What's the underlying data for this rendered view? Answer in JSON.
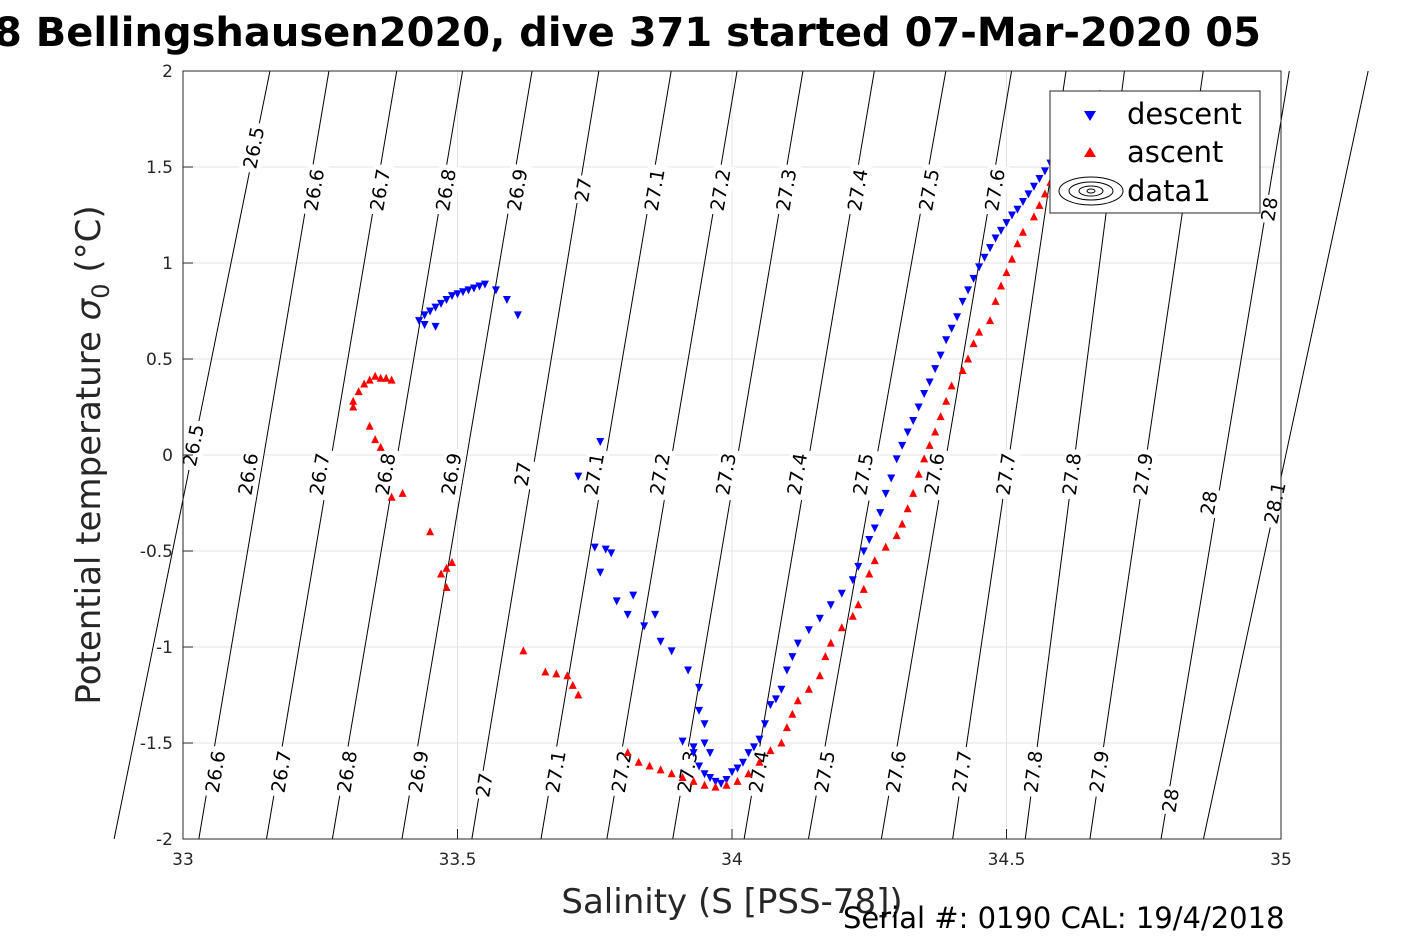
{
  "chart_data": {
    "type": "scatter",
    "title": "8 Bellingshausen2020, dive 371 started 07-Mar-2020 05",
    "xlabel": "Salinity (S [PSS-78])",
    "ylabel_prefix": "Potential temperature ",
    "ylabel_sigma": "σ",
    "ylabel_sub": "0",
    "ylabel_suffix": " (°C)",
    "footer": "Serial #: 0190  CAL: 19/4/2018",
    "xlim": [
      33,
      35
    ],
    "ylim": [
      -2,
      2
    ],
    "x_ticks": [
      "33",
      "33.5",
      "34",
      "34.5",
      "35"
    ],
    "y_ticks": [
      "-2",
      "-1.5",
      "-1",
      "-0.5",
      "0",
      "0.5",
      "1",
      "1.5",
      "2"
    ],
    "grid": true,
    "legend_position": "top-right",
    "legend": [
      {
        "label": "descent",
        "marker": "triangle-down",
        "color": "#0000ff"
      },
      {
        "label": "ascent",
        "marker": "triangle-up",
        "color": "#ff0000"
      },
      {
        "label": "data1",
        "marker": "contour",
        "color": "#000000"
      }
    ],
    "contour_levels": [
      {
        "label": "26.5",
        "labels_at": [
          [
            33.13,
            1.6
          ],
          [
            33.02,
            0.05
          ]
        ]
      },
      {
        "label": "26.6",
        "labels_at": [
          [
            33.24,
            1.38
          ],
          [
            33.12,
            -0.1
          ],
          [
            33.06,
            -1.65
          ]
        ]
      },
      {
        "label": "26.7",
        "labels_at": [
          [
            33.36,
            1.38
          ],
          [
            33.25,
            -0.1
          ],
          [
            33.18,
            -1.65
          ]
        ]
      },
      {
        "label": "26.8",
        "labels_at": [
          [
            33.48,
            1.38
          ],
          [
            33.37,
            -0.1
          ],
          [
            33.3,
            -1.65
          ]
        ]
      },
      {
        "label": "26.9",
        "labels_at": [
          [
            33.61,
            1.38
          ],
          [
            33.49,
            -0.1
          ],
          [
            33.43,
            -1.65
          ]
        ]
      },
      {
        "label": "27",
        "labels_at": [
          [
            33.73,
            1.38
          ],
          [
            33.62,
            -0.1
          ],
          [
            33.55,
            -1.72
          ]
        ]
      },
      {
        "label": "27.1",
        "labels_at": [
          [
            33.86,
            1.38
          ],
          [
            33.75,
            -0.1
          ],
          [
            33.68,
            -1.65
          ]
        ]
      },
      {
        "label": "27.2",
        "labels_at": [
          [
            33.98,
            1.38
          ],
          [
            33.87,
            -0.1
          ],
          [
            33.8,
            -1.65
          ]
        ]
      },
      {
        "label": "27.3",
        "labels_at": [
          [
            34.1,
            1.38
          ],
          [
            33.99,
            -0.1
          ],
          [
            33.92,
            -1.65
          ]
        ]
      },
      {
        "label": "27.4",
        "labels_at": [
          [
            34.23,
            1.38
          ],
          [
            34.12,
            -0.1
          ],
          [
            34.05,
            -1.65
          ]
        ]
      },
      {
        "label": "27.5",
        "labels_at": [
          [
            34.36,
            1.38
          ],
          [
            34.24,
            -0.1
          ],
          [
            34.17,
            -1.65
          ]
        ]
      },
      {
        "label": "27.6",
        "labels_at": [
          [
            34.48,
            1.38
          ],
          [
            34.37,
            -0.1
          ],
          [
            34.3,
            -1.65
          ]
        ]
      },
      {
        "label": "27.7",
        "labels_at": [
          [
            34.5,
            -0.1
          ],
          [
            34.42,
            -1.65
          ]
        ]
      },
      {
        "label": "27.8",
        "labels_at": [
          [
            34.62,
            -0.1
          ],
          [
            34.55,
            -1.65
          ]
        ]
      },
      {
        "label": "27.9",
        "labels_at": [
          [
            34.75,
            -0.1
          ],
          [
            34.67,
            -1.65
          ]
        ]
      },
      {
        "label": "28",
        "labels_at": [
          [
            34.98,
            1.28
          ],
          [
            34.87,
            -0.25
          ],
          [
            34.8,
            -1.8
          ]
        ]
      },
      {
        "label": "28.1",
        "labels_at": [
          [
            34.99,
            -0.25
          ]
        ]
      }
    ],
    "series": [
      {
        "name": "descent",
        "marker": "triangle-down",
        "color": "#0000ff",
        "points": [
          [
            33.43,
            0.7
          ],
          [
            33.44,
            0.73
          ],
          [
            33.45,
            0.75
          ],
          [
            33.46,
            0.77
          ],
          [
            33.47,
            0.79
          ],
          [
            33.48,
            0.81
          ],
          [
            33.49,
            0.83
          ],
          [
            33.5,
            0.84
          ],
          [
            33.51,
            0.85
          ],
          [
            33.52,
            0.86
          ],
          [
            33.53,
            0.87
          ],
          [
            33.54,
            0.88
          ],
          [
            33.55,
            0.89
          ],
          [
            33.57,
            0.86
          ],
          [
            33.59,
            0.81
          ],
          [
            33.61,
            0.73
          ],
          [
            33.44,
            0.68
          ],
          [
            33.46,
            0.67
          ],
          [
            33.76,
            0.07
          ],
          [
            33.72,
            -0.11
          ],
          [
            33.75,
            -0.48
          ],
          [
            33.77,
            -0.49
          ],
          [
            33.78,
            -0.51
          ],
          [
            33.76,
            -0.61
          ],
          [
            33.79,
            -0.76
          ],
          [
            33.82,
            -0.73
          ],
          [
            33.81,
            -0.83
          ],
          [
            33.84,
            -0.89
          ],
          [
            33.86,
            -0.83
          ],
          [
            33.87,
            -0.97
          ],
          [
            33.89,
            -1.02
          ],
          [
            33.92,
            -1.12
          ],
          [
            33.94,
            -1.21
          ],
          [
            33.94,
            -1.33
          ],
          [
            33.95,
            -1.4
          ],
          [
            33.91,
            -1.49
          ],
          [
            33.93,
            -1.52
          ],
          [
            33.95,
            -1.5
          ],
          [
            33.93,
            -1.55
          ],
          [
            33.96,
            -1.55
          ],
          [
            33.94,
            -1.62
          ],
          [
            33.95,
            -1.66
          ],
          [
            33.96,
            -1.68
          ],
          [
            33.97,
            -1.7
          ],
          [
            33.98,
            -1.71
          ],
          [
            33.99,
            -1.69
          ],
          [
            34.0,
            -1.65
          ],
          [
            34.01,
            -1.63
          ],
          [
            34.02,
            -1.6
          ],
          [
            34.03,
            -1.55
          ],
          [
            34.04,
            -1.52
          ],
          [
            34.05,
            -1.48
          ],
          [
            34.06,
            -1.4
          ],
          [
            34.07,
            -1.3
          ],
          [
            34.08,
            -1.27
          ],
          [
            34.09,
            -1.22
          ],
          [
            34.1,
            -1.12
          ],
          [
            34.11,
            -1.05
          ],
          [
            34.12,
            -0.98
          ],
          [
            34.14,
            -0.91
          ],
          [
            34.16,
            -0.85
          ],
          [
            34.18,
            -0.78
          ],
          [
            34.2,
            -0.72
          ],
          [
            34.22,
            -0.65
          ],
          [
            34.23,
            -0.58
          ],
          [
            34.24,
            -0.5
          ],
          [
            34.25,
            -0.44
          ],
          [
            34.26,
            -0.38
          ],
          [
            34.27,
            -0.3
          ],
          [
            34.28,
            -0.2
          ],
          [
            34.29,
            -0.12
          ],
          [
            34.3,
            -0.02
          ],
          [
            34.31,
            0.05
          ],
          [
            34.32,
            0.12
          ],
          [
            34.33,
            0.18
          ],
          [
            34.34,
            0.25
          ],
          [
            34.35,
            0.32
          ],
          [
            34.36,
            0.38
          ],
          [
            34.37,
            0.45
          ],
          [
            34.38,
            0.52
          ],
          [
            34.39,
            0.6
          ],
          [
            34.4,
            0.66
          ],
          [
            34.41,
            0.72
          ],
          [
            34.42,
            0.8
          ],
          [
            34.43,
            0.86
          ],
          [
            34.44,
            0.92
          ],
          [
            34.45,
            0.98
          ],
          [
            34.46,
            1.03
          ],
          [
            34.47,
            1.08
          ],
          [
            34.48,
            1.13
          ],
          [
            34.49,
            1.17
          ],
          [
            34.5,
            1.21
          ],
          [
            34.51,
            1.25
          ],
          [
            34.52,
            1.28
          ],
          [
            34.53,
            1.32
          ],
          [
            34.54,
            1.36
          ],
          [
            34.55,
            1.4
          ],
          [
            34.56,
            1.44
          ],
          [
            34.57,
            1.48
          ],
          [
            34.58,
            1.52
          ],
          [
            34.59,
            1.55
          ],
          [
            34.6,
            1.57
          ]
        ]
      },
      {
        "name": "ascent",
        "marker": "triangle-up",
        "color": "#ff0000",
        "points": [
          [
            33.31,
            0.28
          ],
          [
            33.32,
            0.33
          ],
          [
            33.33,
            0.37
          ],
          [
            33.34,
            0.39
          ],
          [
            33.35,
            0.41
          ],
          [
            33.36,
            0.4
          ],
          [
            33.37,
            0.4
          ],
          [
            33.38,
            0.39
          ],
          [
            33.31,
            0.25
          ],
          [
            33.34,
            0.15
          ],
          [
            33.35,
            0.08
          ],
          [
            33.36,
            0.04
          ],
          [
            33.4,
            -0.2
          ],
          [
            33.38,
            -0.22
          ],
          [
            33.45,
            -0.4
          ],
          [
            33.47,
            -0.62
          ],
          [
            33.48,
            -0.59
          ],
          [
            33.49,
            -0.56
          ],
          [
            33.48,
            -0.69
          ],
          [
            33.62,
            -1.02
          ],
          [
            33.66,
            -1.13
          ],
          [
            33.68,
            -1.14
          ],
          [
            33.7,
            -1.15
          ],
          [
            33.71,
            -1.2
          ],
          [
            33.72,
            -1.25
          ],
          [
            33.81,
            -1.55
          ],
          [
            33.83,
            -1.6
          ],
          [
            33.85,
            -1.62
          ],
          [
            33.87,
            -1.64
          ],
          [
            33.89,
            -1.66
          ],
          [
            33.91,
            -1.68
          ],
          [
            33.93,
            -1.7
          ],
          [
            33.95,
            -1.72
          ],
          [
            33.97,
            -1.73
          ],
          [
            33.99,
            -1.72
          ],
          [
            34.01,
            -1.7
          ],
          [
            34.03,
            -1.66
          ],
          [
            34.05,
            -1.6
          ],
          [
            34.07,
            -1.54
          ],
          [
            34.09,
            -1.5
          ],
          [
            34.1,
            -1.42
          ],
          [
            34.11,
            -1.35
          ],
          [
            34.12,
            -1.28
          ],
          [
            34.14,
            -1.22
          ],
          [
            34.16,
            -1.15
          ],
          [
            34.17,
            -1.05
          ],
          [
            34.18,
            -0.98
          ],
          [
            34.2,
            -0.9
          ],
          [
            34.22,
            -0.84
          ],
          [
            34.23,
            -0.78
          ],
          [
            34.24,
            -0.7
          ],
          [
            34.25,
            -0.62
          ],
          [
            34.26,
            -0.55
          ],
          [
            34.28,
            -0.48
          ],
          [
            34.3,
            -0.42
          ],
          [
            34.31,
            -0.36
          ],
          [
            34.32,
            -0.28
          ],
          [
            34.33,
            -0.2
          ],
          [
            34.34,
            -0.1
          ],
          [
            34.35,
            -0.02
          ],
          [
            34.36,
            0.05
          ],
          [
            34.37,
            0.12
          ],
          [
            34.38,
            0.2
          ],
          [
            34.39,
            0.28
          ],
          [
            34.4,
            0.36
          ],
          [
            34.42,
            0.44
          ],
          [
            34.43,
            0.5
          ],
          [
            34.44,
            0.58
          ],
          [
            34.45,
            0.64
          ],
          [
            34.47,
            0.7
          ],
          [
            34.48,
            0.8
          ],
          [
            34.49,
            0.88
          ],
          [
            34.5,
            0.95
          ],
          [
            34.51,
            1.02
          ],
          [
            34.52,
            1.1
          ],
          [
            34.53,
            1.16
          ],
          [
            34.55,
            1.24
          ],
          [
            34.56,
            1.3
          ],
          [
            34.57,
            1.36
          ],
          [
            34.58,
            1.42
          ],
          [
            34.6,
            1.46
          ],
          [
            34.62,
            1.52
          ],
          [
            34.64,
            1.56
          ],
          [
            34.67,
            1.88
          ]
        ]
      }
    ]
  }
}
